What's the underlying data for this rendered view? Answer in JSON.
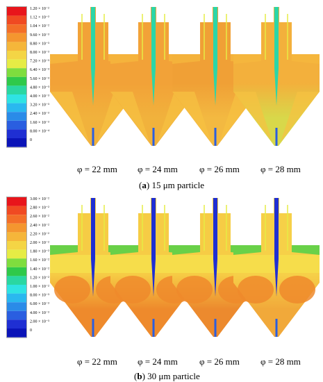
{
  "panels": [
    {
      "id": "a",
      "caption_letter": "(a)",
      "caption_text": "15 μm particle",
      "legend_labels": [
        "1.20 × 10⁻²",
        "1.12 × 10⁻²",
        "1.04 × 10⁻²",
        "9.60 × 10⁻³",
        "8.80 × 10⁻³",
        "8.00 × 10⁻³",
        "7.20 × 10⁻³",
        "6.40 × 10⁻³",
        "5.60 × 10⁻³",
        "4.80 × 10⁻³",
        "4.00 × 10⁻³",
        "3.20 × 10⁻³",
        "2.40 × 10⁻³",
        "1.60 × 10⁻³",
        "8.00 × 10⁻⁴",
        "0"
      ],
      "subplots": [
        {
          "label": "φ = 22 mm",
          "body": "#f2a238",
          "cone": "#f1b23c"
        },
        {
          "label": "φ = 24 mm",
          "body": "#f2a238",
          "cone": "#f1b23c"
        },
        {
          "label": "φ = 26 mm",
          "body": "#f0a036",
          "cone": "#f3b941"
        },
        {
          "label": "φ = 28 mm",
          "body": "#f3b03c",
          "cone": "#d8d84a"
        }
      ]
    },
    {
      "id": "b",
      "caption_letter": "(b)",
      "caption_text": "30 μm particle",
      "legend_labels": [
        "3.00 × 10⁻²",
        "2.80 × 10⁻²",
        "2.60 × 10⁻²",
        "2.40 × 10⁻²",
        "2.20 × 10⁻²",
        "2.00 × 10⁻²",
        "1.80 × 10⁻²",
        "1.60 × 10⁻²",
        "1.40 × 10⁻²",
        "1.20 × 10⁻²",
        "1.00 × 10⁻²",
        "8.00 × 10⁻³",
        "6.00 × 10⁻³",
        "4.00 × 10⁻³",
        "2.00 × 10⁻³",
        "0"
      ],
      "subplots": [
        {
          "label": "φ = 22 mm",
          "body": "#f6cc45",
          "cone": "#ee8a2c"
        },
        {
          "label": "φ = 24 mm",
          "body": "#f6cc45",
          "cone": "#ee8a2c"
        },
        {
          "label": "φ = 26 mm",
          "body": "#f6cc45",
          "cone": "#ec8a2e"
        },
        {
          "label": "φ = 28 mm",
          "body": "#f6d048",
          "cone": "#f1a93a"
        }
      ]
    }
  ],
  "colormap": [
    "#e8151b",
    "#f04a22",
    "#f36f28",
    "#f4962f",
    "#f5b63a",
    "#f4d545",
    "#e6ec45",
    "#7fdd3e",
    "#2fc94a",
    "#2ad7a2",
    "#2fe3e3",
    "#2ab8ef",
    "#2a8be8",
    "#2a5ee0",
    "#1f2fd3",
    "#0b14b8"
  ]
}
